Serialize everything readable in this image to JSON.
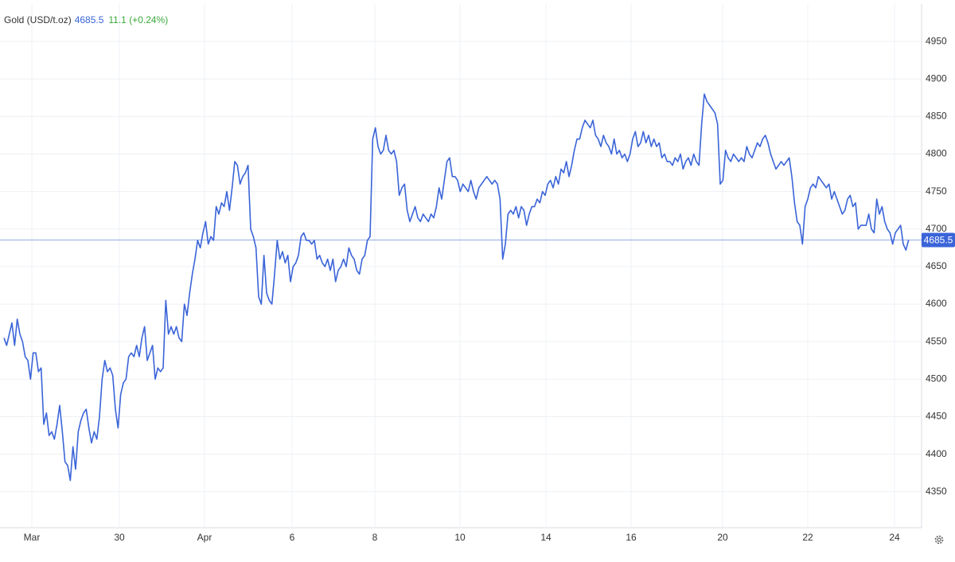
{
  "chart_data": {
    "type": "line",
    "title": "Gold (USD/t.oz)",
    "last_price": 4685.5,
    "change": "11.1 (+0.24%)",
    "series": [
      {
        "name": "Gold",
        "color": "#3a64d8",
        "values": [
          4555,
          4545,
          4560,
          4575,
          4545,
          4580,
          4560,
          4550,
          4530,
          4525,
          4500,
          4535,
          4535,
          4510,
          4515,
          4440,
          4455,
          4425,
          4430,
          4420,
          4440,
          4465,
          4430,
          4390,
          4385,
          4365,
          4410,
          4380,
          4430,
          4445,
          4455,
          4460,
          4435,
          4415,
          4430,
          4420,
          4450,
          4500,
          4525,
          4510,
          4515,
          4505,
          4460,
          4435,
          4480,
          4495,
          4500,
          4530,
          4535,
          4530,
          4545,
          4530,
          4555,
          4570,
          4525,
          4535,
          4545,
          4500,
          4515,
          4510,
          4515,
          4605,
          4560,
          4570,
          4560,
          4570,
          4555,
          4550,
          4600,
          4585,
          4615,
          4640,
          4660,
          4685,
          4675,
          4695,
          4710,
          4680,
          4690,
          4685,
          4730,
          4720,
          4735,
          4730,
          4750,
          4725,
          4755,
          4790,
          4785,
          4760,
          4770,
          4775,
          4785,
          4700,
          4690,
          4675,
          4610,
          4600,
          4665,
          4615,
          4605,
          4600,
          4640,
          4685,
          4660,
          4670,
          4655,
          4665,
          4630,
          4650,
          4655,
          4665,
          4690,
          4695,
          4685,
          4685,
          4680,
          4685,
          4660,
          4665,
          4655,
          4650,
          4660,
          4645,
          4660,
          4630,
          4645,
          4650,
          4660,
          4650,
          4675,
          4665,
          4660,
          4645,
          4640,
          4660,
          4665,
          4685,
          4690,
          4820,
          4835,
          4810,
          4800,
          4805,
          4825,
          4805,
          4800,
          4805,
          4790,
          4745,
          4755,
          4760,
          4725,
          4710,
          4720,
          4730,
          4715,
          4710,
          4720,
          4715,
          4710,
          4720,
          4715,
          4730,
          4755,
          4740,
          4765,
          4790,
          4795,
          4770,
          4770,
          4765,
          4750,
          4760,
          4755,
          4750,
          4765,
          4750,
          4740,
          4755,
          4760,
          4765,
          4770,
          4765,
          4760,
          4765,
          4760,
          4740,
          4660,
          4680,
          4720,
          4725,
          4720,
          4730,
          4715,
          4730,
          4725,
          4705,
          4720,
          4730,
          4730,
          4740,
          4735,
          4750,
          4745,
          4760,
          4765,
          4755,
          4770,
          4760,
          4780,
          4775,
          4790,
          4770,
          4785,
          4805,
          4820,
          4820,
          4835,
          4845,
          4840,
          4835,
          4845,
          4825,
          4820,
          4810,
          4825,
          4815,
          4810,
          4800,
          4820,
          4800,
          4805,
          4795,
          4800,
          4790,
          4800,
          4820,
          4830,
          4810,
          4815,
          4830,
          4815,
          4825,
          4810,
          4820,
          4810,
          4815,
          4795,
          4800,
          4790,
          4790,
          4785,
          4795,
          4790,
          4800,
          4780,
          4790,
          4795,
          4785,
          4800,
          4790,
          4785,
          4840,
          4880,
          4870,
          4865,
          4860,
          4855,
          4840,
          4760,
          4765,
          4805,
          4795,
          4790,
          4800,
          4795,
          4790,
          4795,
          4790,
          4810,
          4800,
          4795,
          4805,
          4815,
          4810,
          4820,
          4825,
          4815,
          4800,
          4790,
          4780,
          4785,
          4790,
          4785,
          4790,
          4795,
          4770,
          4735,
          4710,
          4705,
          4680,
          4730,
          4740,
          4755,
          4760,
          4755,
          4770,
          4765,
          4760,
          4755,
          4760,
          4740,
          4750,
          4740,
          4730,
          4720,
          4725,
          4740,
          4745,
          4730,
          4735,
          4700,
          4705,
          4705,
          4705,
          4720,
          4700,
          4695,
          4740,
          4720,
          4730,
          4710,
          4700,
          4695,
          4680,
          4695,
          4700,
          4705,
          4680,
          4672,
          4685.5
        ]
      }
    ],
    "xlim": [
      -1.5,
      345.9
    ],
    "xticks": [
      {
        "value": 10.5,
        "label": "Mar"
      },
      {
        "value": 43.5,
        "label": "30"
      },
      {
        "value": 75.6,
        "label": "Apr"
      },
      {
        "value": 108.6,
        "label": "6"
      },
      {
        "value": 139.8,
        "label": "8"
      },
      {
        "value": 171.9,
        "label": "10"
      },
      {
        "value": 204.3,
        "label": "14"
      },
      {
        "value": 236.4,
        "label": "16"
      },
      {
        "value": 270.9,
        "label": "20"
      },
      {
        "value": 303,
        "label": "22"
      },
      {
        "value": 335.7,
        "label": "24"
      }
    ],
    "ylim": [
      4302,
      5000
    ],
    "yticks": [
      4350,
      4400,
      4450,
      4500,
      4550,
      4600,
      4650,
      4700,
      4750,
      4800,
      4850,
      4900,
      4950
    ],
    "grid": true
  }
}
